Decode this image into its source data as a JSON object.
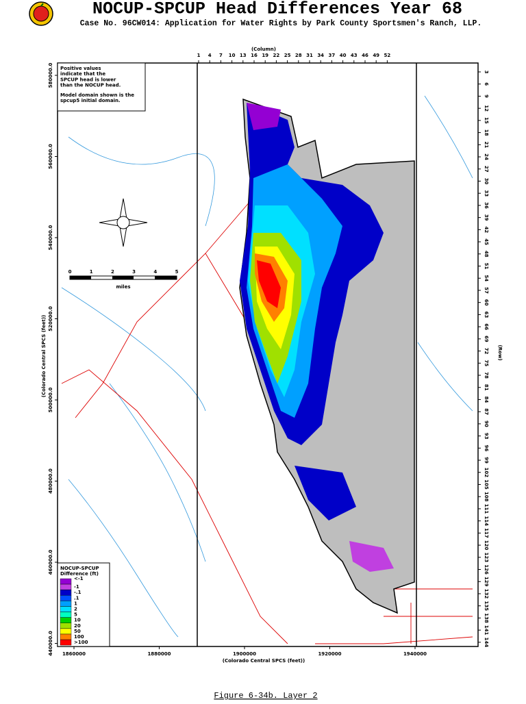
{
  "header": {
    "title": "NOCUP-SPCUP Head Differences Year 68",
    "subtitle": "Case No. 96CW014: Application for Water Rights by Park County Sportsmen's Ranch, LLP."
  },
  "map": {
    "column_axis": {
      "label": "(Column)",
      "ticks": [
        "1",
        "4",
        "7",
        "10",
        "13",
        "16",
        "19",
        "22",
        "25",
        "28",
        "31",
        "34",
        "37",
        "40",
        "43",
        "46",
        "49",
        "52"
      ]
    },
    "row_axis": {
      "label": "(Row)",
      "ticks": [
        "3",
        "6",
        "9",
        "12",
        "15",
        "18",
        "21",
        "24",
        "27",
        "30",
        "33",
        "36",
        "39",
        "42",
        "45",
        "48",
        "51",
        "54",
        "57",
        "60",
        "63",
        "66",
        "69",
        "72",
        "75",
        "78",
        "81",
        "84",
        "87",
        "90",
        "93",
        "96",
        "99",
        "102",
        "105",
        "108",
        "111",
        "114",
        "117",
        "120",
        "123",
        "126",
        "129",
        "132",
        "135",
        "138",
        "141",
        "144"
      ]
    },
    "northing_axis": {
      "label": "(Colorado Central SPCS (feet))",
      "ticks": [
        "580000.0",
        "560000.0",
        "540000.0",
        "520000.0",
        "500000.0",
        "480000.0",
        "460000.0",
        "440000.0"
      ]
    },
    "easting_axis": {
      "label": "(Colorado Central SPCS (feet))",
      "ticks": [
        "1860000",
        "1880000",
        "1900000",
        "1920000",
        "1940000"
      ]
    },
    "note": [
      "Positive values",
      "indicate that the",
      "SPCUP head is lower",
      "than the NOCUP head.",
      "Model domain shown is the",
      "spcup5 initial domain."
    ],
    "scale": {
      "ticks": [
        "0",
        "1",
        "2",
        "3",
        "4",
        "5"
      ],
      "unit": "miles"
    },
    "legend": {
      "title": "NOCUP-SPCUP",
      "subtitle": "Difference (ft)",
      "items": [
        {
          "label": "<-1",
          "color": "#9400d3"
        },
        {
          "label": "-1",
          "color": "#c040e0"
        },
        {
          "label": "-.1",
          "color": "#0000c8"
        },
        {
          "label": ".1",
          "color": "#0050ff"
        },
        {
          "label": "1",
          "color": "#00a0ff"
        },
        {
          "label": "2",
          "color": "#00e0ff"
        },
        {
          "label": "5",
          "color": "#00ffc0"
        },
        {
          "label": "10",
          "color": "#00d000"
        },
        {
          "label": "20",
          "color": "#a0e000"
        },
        {
          "label": "50",
          "color": "#ffff00"
        },
        {
          "label": "100",
          "color": "#ff8000"
        },
        {
          "label": ">100",
          "color": "#ff0000"
        }
      ]
    }
  },
  "caption": "Figure 6-34b.  Layer 2"
}
